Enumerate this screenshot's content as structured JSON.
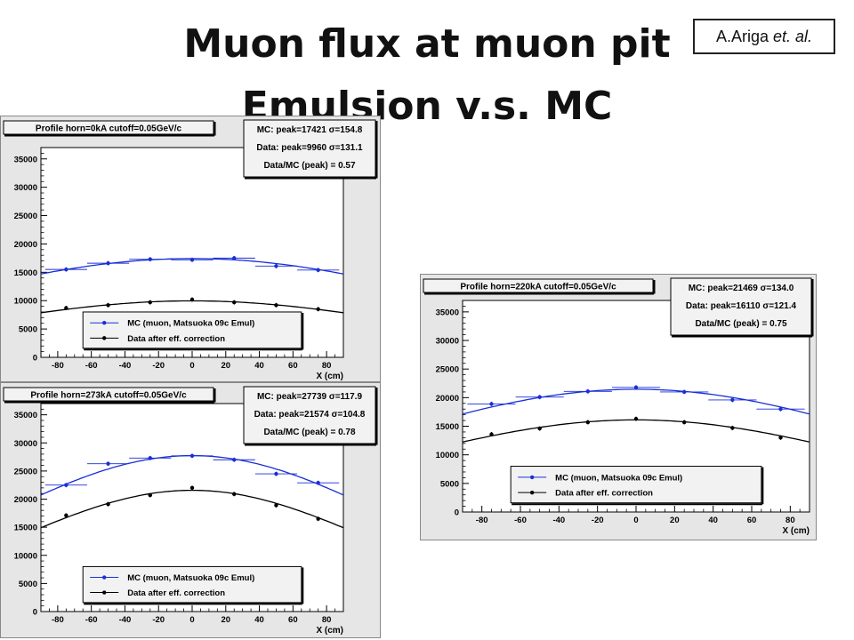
{
  "title": {
    "line1": "Muon flux at muon pit",
    "line2": "Emulsion v.s. MC"
  },
  "author": {
    "name": "A.Ariga",
    "suffix": "et. al."
  },
  "colors": {
    "mc": "#1a2fd6",
    "data": "#000000",
    "frame_bg": "#e6e6e6",
    "plot_bg": "#ffffff"
  },
  "chart_data": [
    {
      "id": "chart-1",
      "type": "scatter",
      "title": "Profile horn=0kA cutoff=0.05GeV/c",
      "stats": [
        "MC: peak=17421 σ=154.8",
        "Data: peak=9960 σ=131.1",
        "Data/MC (peak) = 0.57"
      ],
      "xlabel": "X (cm)",
      "xlim": [
        -90,
        90
      ],
      "ylim": [
        0,
        37000
      ],
      "xticks": [
        -80,
        -60,
        -40,
        -20,
        0,
        20,
        40,
        60,
        80
      ],
      "yticks": [
        0,
        5000,
        10000,
        15000,
        20000,
        25000,
        30000,
        35000
      ],
      "legend": [
        "MC (muon, Matsuoka 09c Emul)",
        "Data after eff. correction"
      ],
      "legend_position": "bottom-center",
      "series": [
        {
          "name": "MC (muon, Matsuoka 09c Emul)",
          "x": [
            -75,
            -50,
            -25,
            0,
            25,
            50,
            75
          ],
          "y": [
            15500,
            16600,
            17300,
            17200,
            17500,
            16100,
            15400
          ],
          "xerr": 12.5,
          "fit": {
            "peak": 17421,
            "sigma": 154.8,
            "center": 0
          }
        },
        {
          "name": "Data after eff. correction",
          "x": [
            -75,
            -50,
            -25,
            0,
            25,
            50,
            75
          ],
          "y": [
            8700,
            9200,
            9700,
            10200,
            9700,
            9200,
            8500
          ],
          "fit": {
            "peak": 9960,
            "sigma": 131.1,
            "center": 0
          }
        }
      ]
    },
    {
      "id": "chart-2",
      "type": "scatter",
      "title": "Profile horn=273kA cutoff=0.05GeV/c",
      "stats": [
        "MC: peak=27739 σ=117.9",
        "Data: peak=21574 σ=104.8",
        "Data/MC (peak) = 0.78"
      ],
      "xlabel": "X (cm)",
      "xlim": [
        -90,
        90
      ],
      "ylim": [
        0,
        37000
      ],
      "xticks": [
        -80,
        -60,
        -40,
        -20,
        0,
        20,
        40,
        60,
        80
      ],
      "yticks": [
        0,
        5000,
        10000,
        15000,
        20000,
        25000,
        30000,
        35000
      ],
      "legend": [
        "MC (muon, Matsuoka 09c Emul)",
        "Data after eff. correction"
      ],
      "legend_position": "bottom-center",
      "series": [
        {
          "name": "MC (muon, Matsuoka 09c Emul)",
          "x": [
            -75,
            -50,
            -25,
            0,
            25,
            50,
            75
          ],
          "y": [
            22500,
            26300,
            27300,
            27700,
            27000,
            24500,
            22900
          ],
          "xerr": 12.5,
          "fit": {
            "peak": 27739,
            "sigma": 117.9,
            "center": 0
          }
        },
        {
          "name": "Data after eff. correction",
          "x": [
            -75,
            -50,
            -25,
            0,
            25,
            50,
            75
          ],
          "y": [
            17100,
            19100,
            20700,
            22000,
            20900,
            18900,
            16500
          ],
          "fit": {
            "peak": 21574,
            "sigma": 104.8,
            "center": 0
          }
        }
      ]
    },
    {
      "id": "chart-3",
      "type": "scatter",
      "title": "Profile horn=220kA cutoff=0.05GeV/c",
      "stats": [
        "MC: peak=21469 σ=134.0",
        "Data: peak=16110 σ=121.4",
        "Data/MC (peak) = 0.75"
      ],
      "xlabel": "X (cm)",
      "xlim": [
        -90,
        90
      ],
      "ylim": [
        0,
        37000
      ],
      "xticks": [
        -80,
        -60,
        -40,
        -20,
        0,
        20,
        40,
        60,
        80
      ],
      "yticks": [
        0,
        5000,
        10000,
        15000,
        20000,
        25000,
        30000,
        35000
      ],
      "legend": [
        "MC (muon, Matsuoka 09c Emul)",
        "Data after eff. correction"
      ],
      "legend_position": "bottom-center",
      "series": [
        {
          "name": "MC (muon, Matsuoka 09c Emul)",
          "x": [
            -75,
            -50,
            -25,
            0,
            25,
            50,
            75
          ],
          "y": [
            18900,
            20100,
            21100,
            21800,
            21000,
            19600,
            18000
          ],
          "xerr": 12.5,
          "fit": {
            "peak": 21469,
            "sigma": 134.0,
            "center": 0
          }
        },
        {
          "name": "Data after eff. correction",
          "x": [
            -75,
            -50,
            -25,
            0,
            25,
            50,
            75
          ],
          "y": [
            13600,
            14600,
            15700,
            16300,
            15700,
            14700,
            13000
          ],
          "fit": {
            "peak": 16110,
            "sigma": 121.4,
            "center": 0
          }
        }
      ]
    }
  ]
}
